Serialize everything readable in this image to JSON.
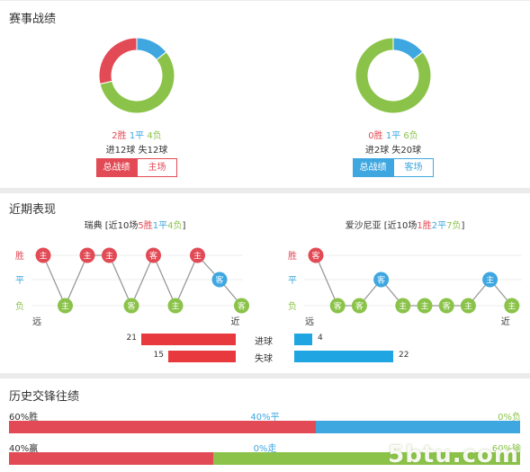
{
  "section_titles": {
    "record": "赛事战绩",
    "recent": "近期表现",
    "history": "历史交锋往绩"
  },
  "record": {
    "left": {
      "win": "2胜",
      "draw": "1平",
      "loss": "4负",
      "goals_for": "进12球",
      "goals_against": "失12球",
      "tab_active": "总战绩",
      "tab_inactive": "主场",
      "donut": {
        "win": 2,
        "draw": 1,
        "loss": 4
      },
      "active_color": "#e24a55"
    },
    "right": {
      "win": "0胜",
      "draw": "1平",
      "loss": "6负",
      "goals_for": "进2球",
      "goals_against": "失20球",
      "tab_active": "总战绩",
      "tab_inactive": "客场",
      "donut": {
        "win": 0,
        "draw": 1,
        "loss": 6
      },
      "active_color": "#3fa7e0"
    }
  },
  "recent": {
    "legend": {
      "win": "胜",
      "draw": "平",
      "loss": "负"
    },
    "far": "远",
    "near": "近",
    "left": {
      "team": "瑞典",
      "summary_pre": " [近10场",
      "wins": "5胜",
      "draws": "1平",
      "losses": "4负",
      "close": "]",
      "results": [
        {
          "r": "W",
          "v": "主"
        },
        {
          "r": "L",
          "v": "主"
        },
        {
          "r": "W",
          "v": "主"
        },
        {
          "r": "W",
          "v": "主"
        },
        {
          "r": "L",
          "v": "客"
        },
        {
          "r": "W",
          "v": "客"
        },
        {
          "r": "L",
          "v": "主"
        },
        {
          "r": "W",
          "v": "主"
        },
        {
          "r": "D",
          "v": "客"
        },
        {
          "r": "L",
          "v": "客"
        }
      ]
    },
    "right": {
      "team": "爱沙尼亚",
      "summary_pre": " [近10场",
      "wins": "1胜",
      "draws": "2平",
      "losses": "7负",
      "close": "]",
      "results": [
        {
          "r": "W",
          "v": "客"
        },
        {
          "r": "L",
          "v": "客"
        },
        {
          "r": "L",
          "v": "客"
        },
        {
          "r": "D",
          "v": "客"
        },
        {
          "r": "L",
          "v": "主"
        },
        {
          "r": "L",
          "v": "主"
        },
        {
          "r": "L",
          "v": "客"
        },
        {
          "r": "L",
          "v": "主"
        },
        {
          "r": "D",
          "v": "主"
        },
        {
          "r": "L",
          "v": "主"
        }
      ]
    },
    "goals": {
      "scored_label": "进球",
      "conceded_label": "失球",
      "left_scored": 21,
      "left_conceded": 15,
      "right_scored": 4,
      "right_conceded": 22
    }
  },
  "history": {
    "row1": {
      "left": "60%胜",
      "mid": "40%平",
      "right": "0%负",
      "p_left": 60,
      "p_mid": 40,
      "p_right": 0
    },
    "row2": {
      "left": "40%赢",
      "mid": "0%走",
      "right": "60%输",
      "p_left": 40,
      "p_mid": 0,
      "p_right": 60
    }
  },
  "watermark": "5btu.com",
  "colors": {
    "win": "#e24a55",
    "draw": "#3fa7e0",
    "loss": "#8bc34a",
    "blue_bar": "#1fa6e2"
  }
}
